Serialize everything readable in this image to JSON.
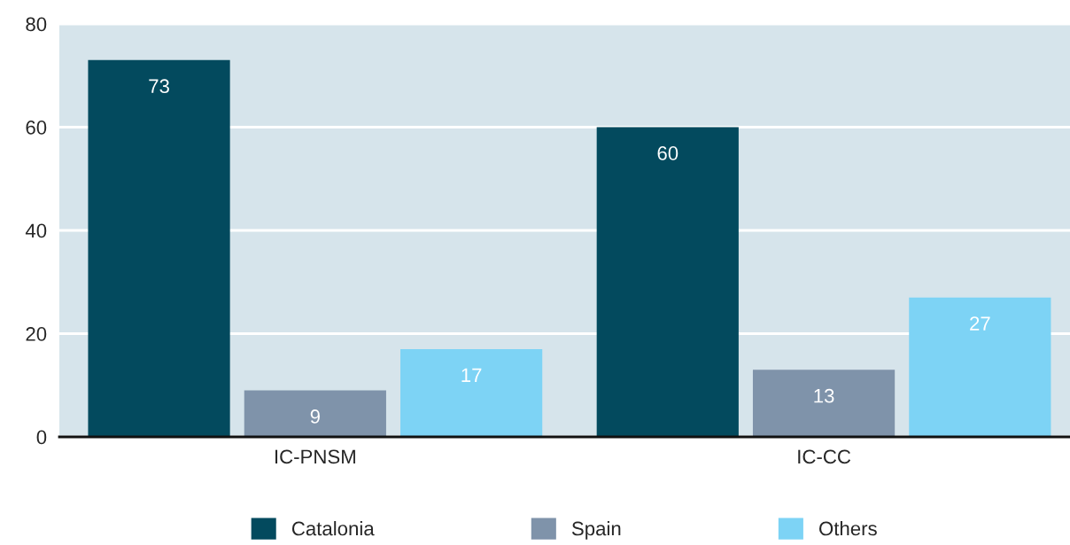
{
  "chart_data": {
    "type": "bar",
    "categories": [
      "IC-PNSM",
      "IC-CC"
    ],
    "series": [
      {
        "name": "Catalonia",
        "color": "#034a5e",
        "values": [
          73,
          60
        ]
      },
      {
        "name": "Spain",
        "color": "#7f93aa",
        "values": [
          9,
          13
        ]
      },
      {
        "name": "Others",
        "color": "#7dd3f5",
        "values": [
          17,
          27
        ]
      }
    ],
    "ylim": [
      0,
      80
    ],
    "yticks": [
      0,
      20,
      40,
      60,
      80
    ],
    "grid": "y",
    "data_labels": true,
    "legend": "bottom"
  }
}
